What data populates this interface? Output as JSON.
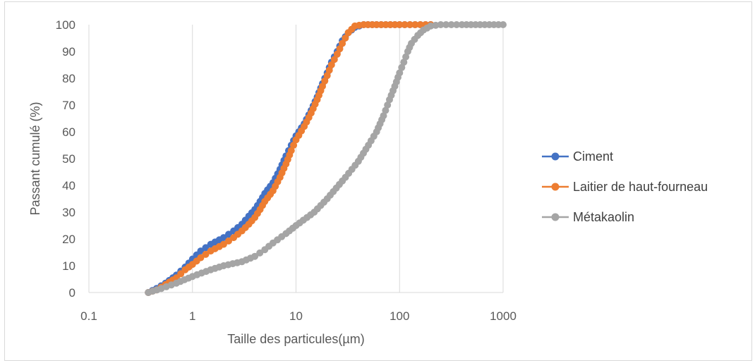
{
  "chart_data": {
    "type": "scatter",
    "x_scale": "log",
    "xlim": [
      0.1,
      1000
    ],
    "ylim": [
      0,
      100
    ],
    "x_ticks": [
      "0.1",
      "1",
      "10",
      "100",
      "1000"
    ],
    "y_ticks": [
      "0",
      "10",
      "20",
      "30",
      "40",
      "50",
      "60",
      "70",
      "80",
      "90",
      "100"
    ],
    "xlabel": "Taille des particules(µm)",
    "ylabel": "Passant cumulé (%)",
    "title": "",
    "grid": "vertical",
    "legend_position": "right",
    "series": [
      {
        "name": "Ciment",
        "color": "#4472C4",
        "points": [
          [
            0.375,
            0
          ],
          [
            0.45,
            1.5
          ],
          [
            0.55,
            3.5
          ],
          [
            0.7,
            6.5
          ],
          [
            0.85,
            9.5
          ],
          [
            1.0,
            12.5
          ],
          [
            1.2,
            15.5
          ],
          [
            1.5,
            18
          ],
          [
            2.0,
            20.5
          ],
          [
            2.5,
            23
          ],
          [
            3.0,
            25.5
          ],
          [
            3.5,
            28.5
          ],
          [
            4.0,
            31
          ],
          [
            4.5,
            34
          ],
          [
            5.0,
            37
          ],
          [
            6.0,
            41
          ],
          [
            7.0,
            46
          ],
          [
            8.0,
            51
          ],
          [
            9.0,
            55
          ],
          [
            10,
            58.5
          ],
          [
            12,
            63
          ],
          [
            14,
            68
          ],
          [
            16,
            73
          ],
          [
            18,
            78
          ],
          [
            20,
            82
          ],
          [
            22,
            86
          ],
          [
            25,
            90
          ],
          [
            28,
            94
          ],
          [
            32,
            97
          ],
          [
            37,
            99
          ],
          [
            45,
            100
          ],
          [
            60,
            100
          ],
          [
            100,
            100
          ],
          [
            200,
            100
          ]
        ]
      },
      {
        "name": "Laitier de haut-fourneau",
        "color": "#ED7D31",
        "points": [
          [
            0.375,
            0
          ],
          [
            0.45,
            1
          ],
          [
            0.55,
            3
          ],
          [
            0.7,
            5.5
          ],
          [
            0.85,
            8.5
          ],
          [
            1.0,
            10.5
          ],
          [
            1.2,
            13
          ],
          [
            1.5,
            15.5
          ],
          [
            2.0,
            18
          ],
          [
            2.5,
            20.5
          ],
          [
            3.0,
            23
          ],
          [
            3.5,
            25.5
          ],
          [
            4.0,
            28
          ],
          [
            4.5,
            31
          ],
          [
            5.0,
            34
          ],
          [
            6.0,
            38
          ],
          [
            7.0,
            43
          ],
          [
            8.0,
            48
          ],
          [
            9.0,
            53
          ],
          [
            10,
            57
          ],
          [
            12,
            62
          ],
          [
            14,
            67
          ],
          [
            16,
            72
          ],
          [
            18,
            77
          ],
          [
            20,
            81
          ],
          [
            22,
            85
          ],
          [
            25,
            89
          ],
          [
            28,
            93
          ],
          [
            32,
            97
          ],
          [
            37,
            99.5
          ],
          [
            45,
            100
          ],
          [
            60,
            100
          ],
          [
            100,
            100
          ],
          [
            200,
            100
          ]
        ]
      },
      {
        "name": "Métakaolin",
        "color": "#A5A5A5",
        "points": [
          [
            0.375,
            0
          ],
          [
            0.5,
            1.5
          ],
          [
            0.7,
            3.5
          ],
          [
            1.0,
            6
          ],
          [
            1.5,
            8.5
          ],
          [
            2.0,
            10
          ],
          [
            3.0,
            11.5
          ],
          [
            4.0,
            13.5
          ],
          [
            5.0,
            16
          ],
          [
            6.0,
            18.5
          ],
          [
            8.0,
            22
          ],
          [
            10,
            25
          ],
          [
            15,
            30
          ],
          [
            20,
            35
          ],
          [
            30,
            43
          ],
          [
            40,
            49
          ],
          [
            50,
            55
          ],
          [
            60,
            60
          ],
          [
            70,
            66
          ],
          [
            80,
            72
          ],
          [
            90,
            77
          ],
          [
            100,
            82
          ],
          [
            110,
            86
          ],
          [
            120,
            90
          ],
          [
            130,
            93
          ],
          [
            150,
            96
          ],
          [
            170,
            98
          ],
          [
            200,
            99.5
          ],
          [
            250,
            100
          ],
          [
            400,
            100
          ],
          [
            600,
            100
          ],
          [
            1000,
            100
          ]
        ]
      }
    ]
  }
}
